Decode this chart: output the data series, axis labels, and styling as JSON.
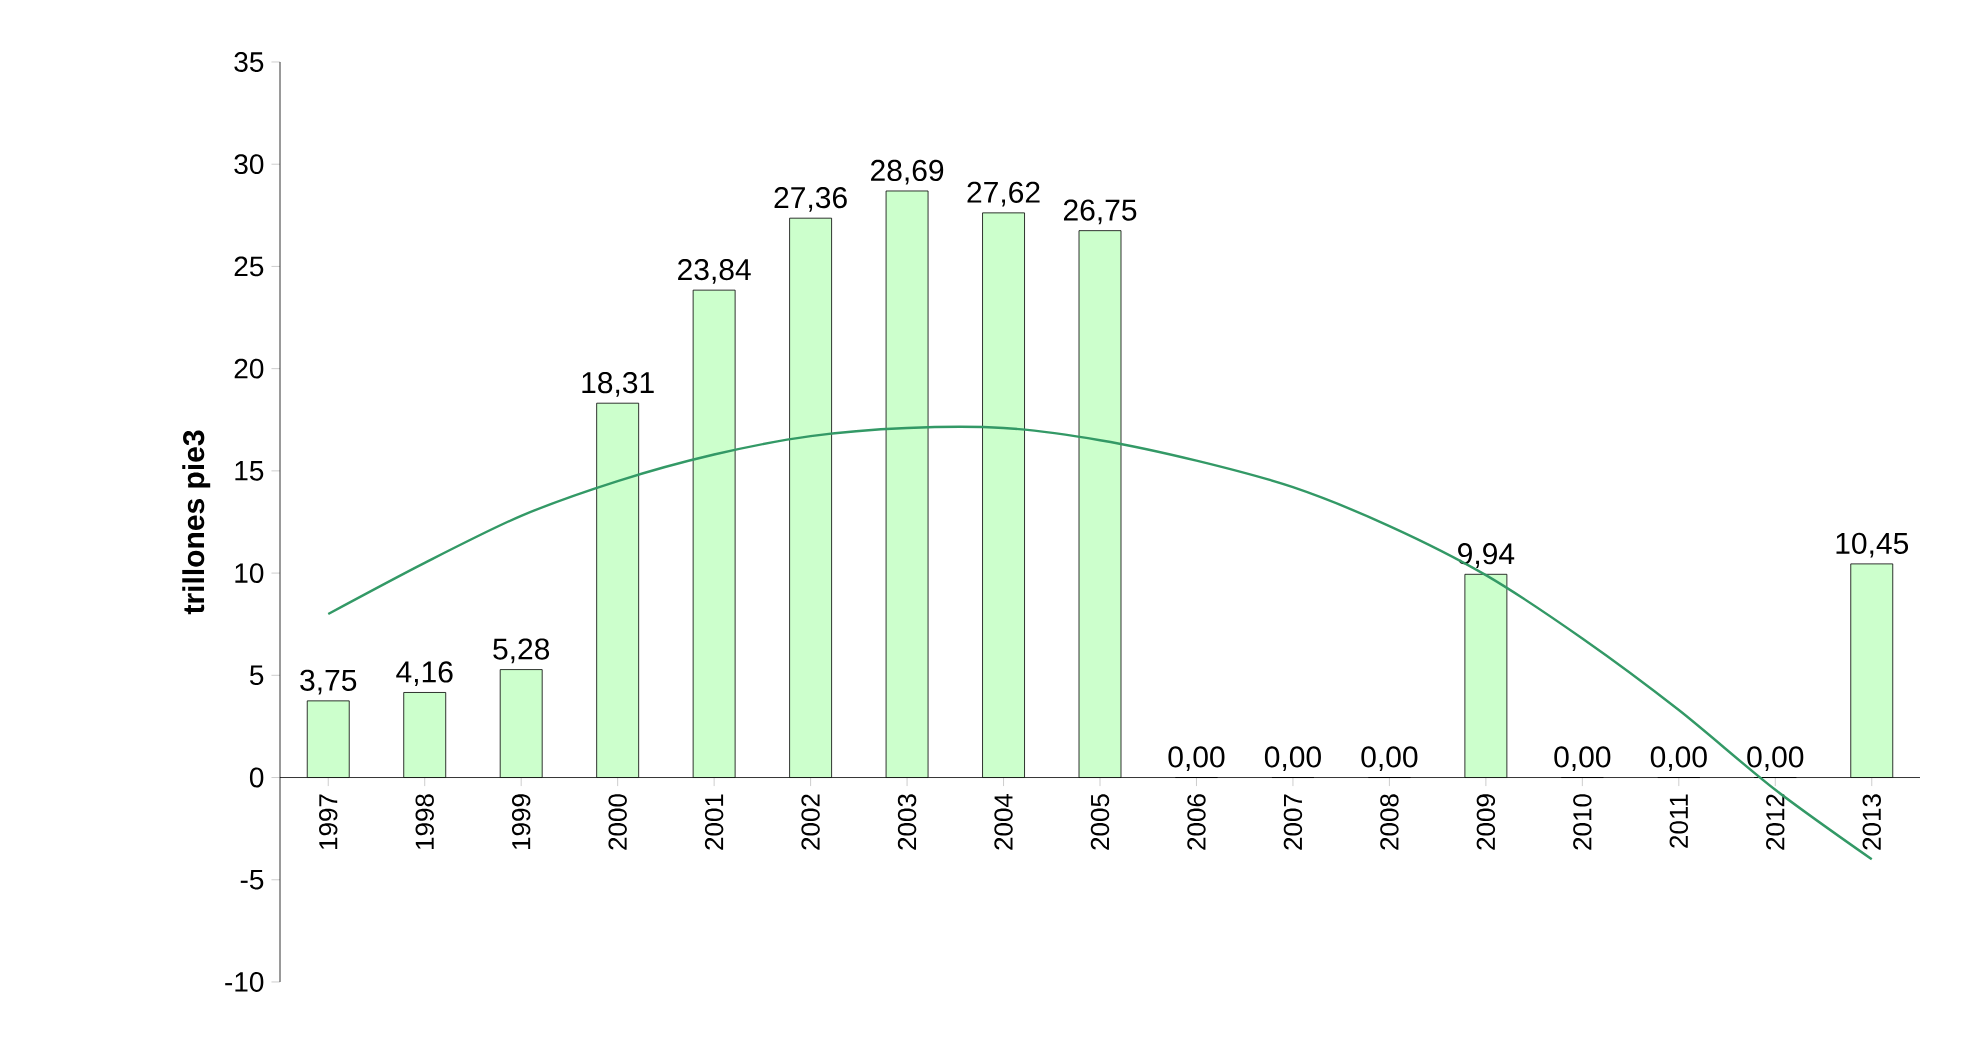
{
  "chart_data": {
    "type": "bar",
    "ylabel": "trillones pie3",
    "categories": [
      "1997",
      "1998",
      "1999",
      "2000",
      "2001",
      "2002",
      "2003",
      "2004",
      "2005",
      "2006",
      "2007",
      "2008",
      "2009",
      "2010",
      "2011",
      "2012",
      "2013"
    ],
    "series": [
      {
        "color": "#ccffcc",
        "values": [
          3.75,
          4.16,
          5.28,
          18.31,
          23.84,
          27.36,
          28.69,
          27.62,
          26.75,
          0.0,
          0.0,
          0.0,
          9.94,
          0.0,
          0.0,
          0.0,
          10.45
        ],
        "value_labels": [
          "3,75",
          "4,16",
          "5,28",
          "18,31",
          "23,84",
          "27,36",
          "28,69",
          "27,62",
          "26,75",
          "0,00",
          "0,00",
          "0,00",
          "9,94",
          "0,00",
          "0,00",
          "0,00",
          "10,45"
        ]
      },
      {
        "type": "line",
        "color": "#339966",
        "values": [
          8.0,
          10.5,
          12.8,
          14.5,
          15.8,
          16.7,
          17.1,
          17.1,
          16.5,
          15.5,
          14.2,
          12.3,
          9.9,
          6.8,
          3.3,
          -0.6,
          -4.0
        ]
      }
    ],
    "ylim": [
      -10,
      35
    ],
    "yticks": [
      -10,
      -5,
      0,
      5,
      10,
      15,
      20,
      25,
      30,
      35
    ]
  }
}
